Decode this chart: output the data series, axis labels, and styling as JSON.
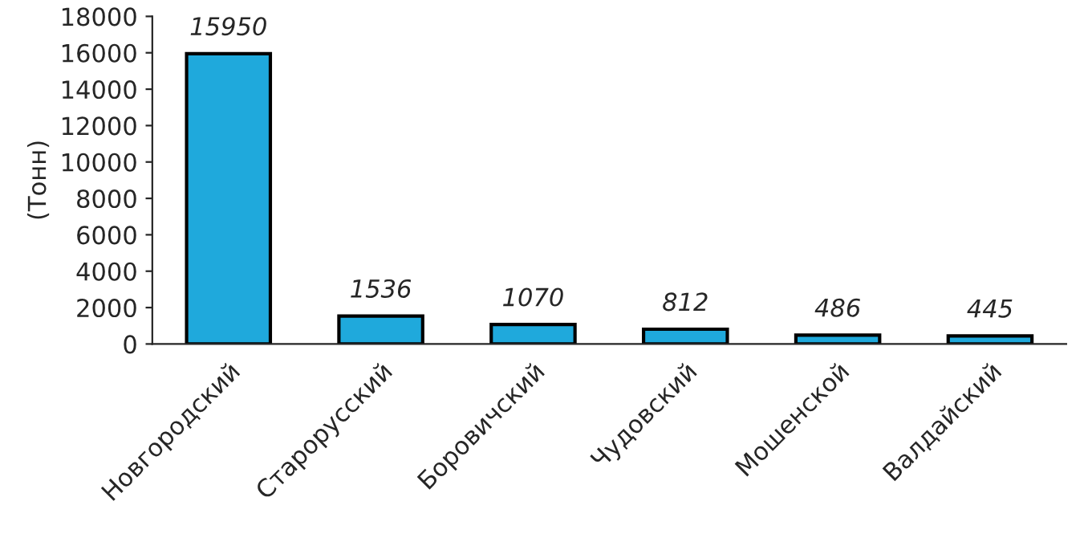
{
  "chart_data": {
    "type": "bar",
    "ylabel": "(Тонн)",
    "categories": [
      "Новгородский",
      "Старорусский",
      "Боровичский",
      "Чудовский",
      "Мошенской",
      "Валдайский"
    ],
    "values": [
      15950,
      1536,
      1070,
      812,
      486,
      445
    ],
    "color": "#1fa9dc",
    "ylim": [
      0,
      18000
    ],
    "yticks": [
      0,
      2000,
      4000,
      6000,
      8000,
      10000,
      12000,
      14000,
      16000,
      18000
    ],
    "grid": false,
    "data_labels": true
  }
}
